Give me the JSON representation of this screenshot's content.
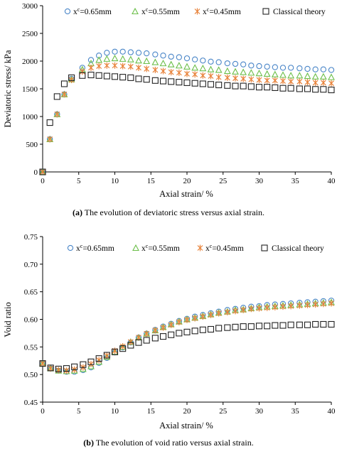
{
  "chart_data": [
    {
      "type": "scatter",
      "xlabel": "Axial strain/ %",
      "ylabel": "Deviatoric stress/ kPa",
      "xlim": [
        0,
        40
      ],
      "ylim": [
        0,
        3000
      ],
      "xticks": [
        0,
        5,
        10,
        15,
        20,
        25,
        30,
        35,
        40
      ],
      "yticks": [
        0,
        500,
        1000,
        1500,
        2000,
        2500,
        3000
      ],
      "x": [
        0,
        1,
        2,
        3,
        4,
        5.5,
        6.7,
        7.8,
        8.9,
        10,
        11.1,
        12.2,
        13.3,
        14.4,
        15.6,
        16.7,
        17.8,
        18.9,
        20,
        21.1,
        22.2,
        23.3,
        24.4,
        25.6,
        26.7,
        27.8,
        28.9,
        30,
        31.1,
        32.2,
        33.3,
        34.4,
        35.6,
        36.7,
        37.8,
        38.9,
        40
      ],
      "series": [
        {
          "name": "xᶜ=0.65mm",
          "marker": "circle",
          "color": "#4a86c8",
          "values": [
            0,
            590,
            1040,
            1400,
            1680,
            1880,
            2020,
            2100,
            2150,
            2170,
            2170,
            2160,
            2150,
            2140,
            2120,
            2100,
            2080,
            2070,
            2050,
            2030,
            2010,
            1990,
            1980,
            1960,
            1950,
            1940,
            1920,
            1910,
            1900,
            1890,
            1880,
            1880,
            1870,
            1860,
            1850,
            1850,
            1840
          ]
        },
        {
          "name": "xᶜ=0.55mm",
          "marker": "triangle",
          "color": "#6cbf4a",
          "values": [
            0,
            590,
            1040,
            1400,
            1670,
            1850,
            1960,
            2020,
            2040,
            2050,
            2040,
            2030,
            2010,
            2000,
            1980,
            1960,
            1940,
            1920,
            1900,
            1880,
            1870,
            1850,
            1840,
            1820,
            1810,
            1800,
            1790,
            1780,
            1770,
            1760,
            1750,
            1740,
            1740,
            1730,
            1720,
            1720,
            1710
          ]
        },
        {
          "name": "xᶜ=0.45mm",
          "marker": "star",
          "color": "#e8823a",
          "values": [
            0,
            590,
            1040,
            1400,
            1660,
            1810,
            1880,
            1910,
            1920,
            1920,
            1910,
            1900,
            1880,
            1860,
            1840,
            1820,
            1800,
            1790,
            1770,
            1760,
            1740,
            1730,
            1710,
            1700,
            1690,
            1680,
            1670,
            1660,
            1650,
            1650,
            1640,
            1630,
            1630,
            1620,
            1610,
            1610,
            1600
          ]
        },
        {
          "name": "Classical theory",
          "marker": "square",
          "color": "#222222",
          "values": [
            0,
            890,
            1360,
            1590,
            1700,
            1740,
            1750,
            1740,
            1730,
            1720,
            1710,
            1700,
            1680,
            1670,
            1650,
            1640,
            1630,
            1620,
            1610,
            1600,
            1590,
            1580,
            1570,
            1560,
            1550,
            1550,
            1540,
            1530,
            1530,
            1520,
            1510,
            1510,
            1500,
            1500,
            1490,
            1490,
            1480
          ]
        }
      ],
      "legend": "top"
    },
    {
      "type": "scatter",
      "xlabel": "Axial strain/ %",
      "ylabel": "Void ratio",
      "xlim": [
        0,
        40
      ],
      "ylim": [
        0.45,
        0.75
      ],
      "xticks": [
        0,
        5,
        10,
        15,
        20,
        25,
        30,
        35,
        40
      ],
      "yticks": [
        0.45,
        0.5,
        0.55,
        0.6,
        0.65,
        0.7,
        0.75
      ],
      "x": [
        0,
        1.1,
        2.2,
        3.3,
        4.4,
        5.6,
        6.7,
        7.8,
        8.9,
        10,
        11.1,
        12.2,
        13.3,
        14.4,
        15.6,
        16.7,
        17.8,
        18.9,
        20,
        21.1,
        22.2,
        23.3,
        24.4,
        25.6,
        26.7,
        27.8,
        28.9,
        30,
        31.1,
        32.2,
        33.3,
        34.4,
        35.6,
        36.7,
        37.8,
        38.9,
        40
      ],
      "series": [
        {
          "name": "xᶜ=0.65mm",
          "marker": "circle",
          "color": "#4a86c8",
          "values": [
            0.52,
            0.511,
            0.507,
            0.505,
            0.505,
            0.508,
            0.513,
            0.521,
            0.53,
            0.54,
            0.549,
            0.558,
            0.567,
            0.574,
            0.581,
            0.587,
            0.592,
            0.597,
            0.601,
            0.605,
            0.608,
            0.611,
            0.614,
            0.617,
            0.619,
            0.621,
            0.623,
            0.624,
            0.626,
            0.627,
            0.628,
            0.629,
            0.63,
            0.631,
            0.632,
            0.633,
            0.634
          ]
        },
        {
          "name": "xᶜ=0.55mm",
          "marker": "triangle",
          "color": "#6cbf4a",
          "values": [
            0.52,
            0.511,
            0.507,
            0.506,
            0.507,
            0.51,
            0.515,
            0.523,
            0.532,
            0.541,
            0.55,
            0.559,
            0.567,
            0.574,
            0.58,
            0.586,
            0.591,
            0.596,
            0.6,
            0.603,
            0.606,
            0.609,
            0.612,
            0.614,
            0.617,
            0.618,
            0.62,
            0.622,
            0.623,
            0.624,
            0.625,
            0.626,
            0.627,
            0.628,
            0.629,
            0.63,
            0.631
          ]
        },
        {
          "name": "xᶜ=0.45mm",
          "marker": "star",
          "color": "#e8823a",
          "values": [
            0.52,
            0.511,
            0.508,
            0.507,
            0.509,
            0.513,
            0.519,
            0.526,
            0.534,
            0.543,
            0.551,
            0.559,
            0.567,
            0.574,
            0.58,
            0.585,
            0.59,
            0.595,
            0.599,
            0.602,
            0.605,
            0.608,
            0.611,
            0.613,
            0.615,
            0.617,
            0.619,
            0.62,
            0.621,
            0.622,
            0.623,
            0.624,
            0.625,
            0.626,
            0.627,
            0.628,
            0.629
          ]
        },
        {
          "name": "Classical theory",
          "marker": "square",
          "color": "#222222",
          "values": [
            0.52,
            0.512,
            0.51,
            0.511,
            0.514,
            0.518,
            0.523,
            0.529,
            0.535,
            0.541,
            0.547,
            0.553,
            0.558,
            0.562,
            0.566,
            0.569,
            0.572,
            0.575,
            0.577,
            0.579,
            0.581,
            0.582,
            0.584,
            0.585,
            0.586,
            0.587,
            0.587,
            0.588,
            0.588,
            0.589,
            0.589,
            0.59,
            0.59,
            0.59,
            0.591,
            0.591,
            0.591
          ]
        }
      ],
      "legend": "top"
    }
  ],
  "captions": {
    "a_label": "(a)",
    "a_text": " The evolution of deviatoric stress versus axial strain.",
    "b_label": "(b)",
    "b_text": " The evolution of void ratio versus axial strain."
  },
  "legend": {
    "c065_prefix": "x",
    "c065_sup": "c",
    "c065_suffix": "=0.65mm",
    "c055_prefix": "x",
    "c055_sup": "c",
    "c055_suffix": "=0.55mm",
    "c045_prefix": "x",
    "c045_sup": "c",
    "c045_suffix": "=0.45mm",
    "classical": "Classical theory"
  }
}
